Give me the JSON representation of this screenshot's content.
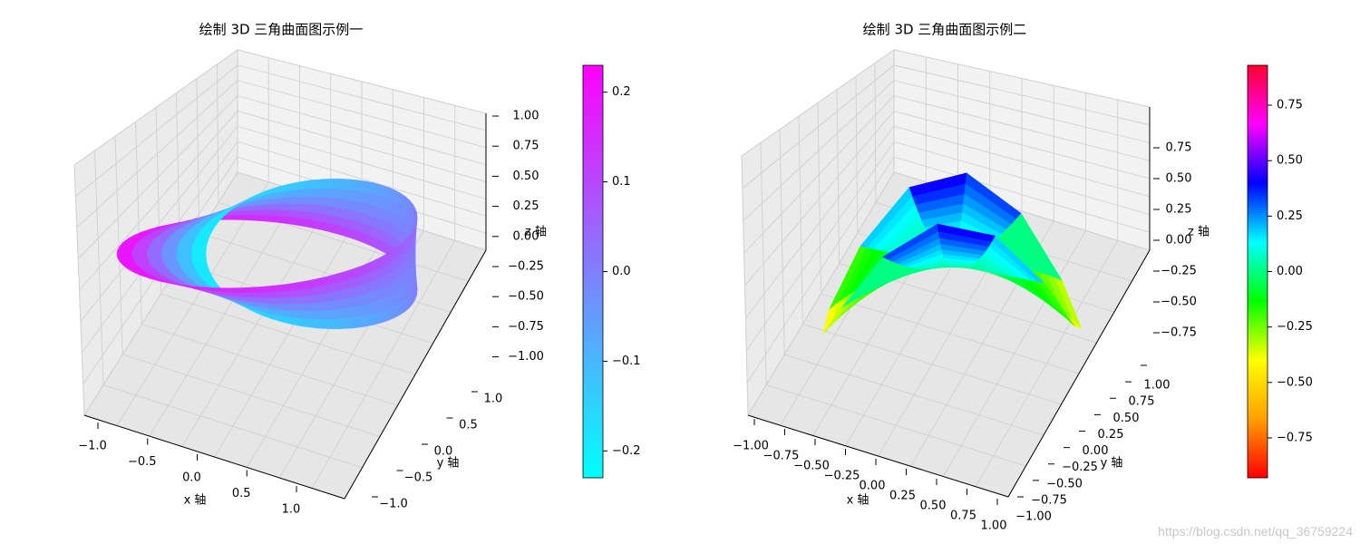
{
  "chart_data": [
    {
      "type": "surface3d",
      "title": "绘制 3D 三角曲面图示例一",
      "xlabel": "x 轴",
      "ylabel": "y 轴",
      "zlabel": "z 轴",
      "xlim": [
        -1.3,
        1.3
      ],
      "ylim": [
        -1.3,
        1.3
      ],
      "zlim": [
        -1,
        1
      ],
      "xticks": [
        "−1.0",
        "−0.5",
        "0.0",
        "0.5",
        "1.0"
      ],
      "yticks": [
        "−1.0",
        "−0.5",
        "0.0",
        "0.5",
        "1.0"
      ],
      "zticks": [
        "1.00",
        "0.75",
        "0.50",
        "0.25",
        "0.00",
        "−0.25",
        "−0.50",
        "−0.75",
        "−1.00"
      ],
      "colormap": "cool",
      "colorbar": {
        "min": -0.23,
        "max": 0.23,
        "ticks": [
          "0.2",
          "0.1",
          "0.0",
          "−0.1",
          "−0.2"
        ],
        "colors": [
          "#00ffff",
          "#ff00ff"
        ]
      },
      "surface": "mobius strip",
      "grid": true
    },
    {
      "type": "surface3d",
      "title": "绘制 3D 三角曲面图示例二",
      "xlabel": "x 轴",
      "ylabel": "y 轴",
      "zlabel": "z 轴",
      "xlim": [
        -1,
        1
      ],
      "ylim": [
        -1,
        1
      ],
      "zlim": [
        -0.95,
        0.95
      ],
      "xticks": [
        "−1.00",
        "−0.75",
        "−0.50",
        "−0.25",
        "0.00",
        "0.25",
        "0.50",
        "0.75",
        "1.00"
      ],
      "yticks": [
        "−1.00",
        "−0.75",
        "−0.50",
        "−0.25",
        "0.00",
        "0.25",
        "0.50",
        "0.75",
        "1.00"
      ],
      "zticks": [
        "0.75",
        "0.50",
        "0.25",
        "0.00",
        "−0.25",
        "−0.50",
        "−0.75"
      ],
      "colormap": "hsv",
      "colorbar": {
        "min": -0.93,
        "max": 0.93,
        "ticks": [
          "0.75",
          "0.50",
          "0.25",
          "0.00",
          "−0.25",
          "−0.50",
          "−0.75"
        ],
        "colors": [
          "#ff0000",
          "#ffa000",
          "#ffff00",
          "#00ff00",
          "#00ffff",
          "#0000ff",
          "#ff00ff",
          "#ff0030"
        ]
      },
      "surface": "z = x*y (triangulated disc)",
      "grid": true
    }
  ],
  "watermark": "https://blog.csdn.net/qq_36759224"
}
